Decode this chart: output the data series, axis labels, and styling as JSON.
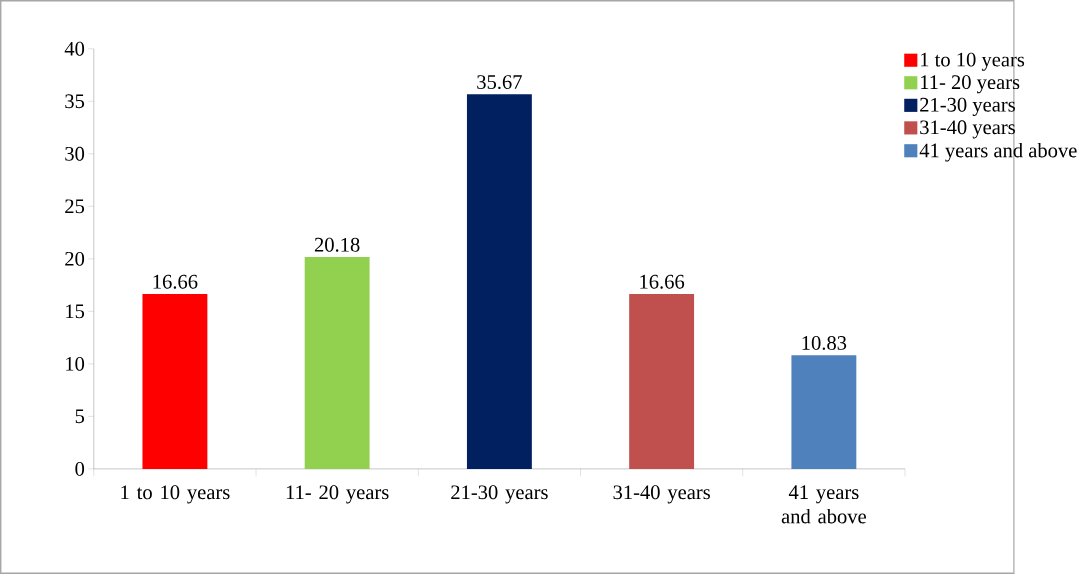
{
  "chart_data": {
    "type": "bar",
    "categories": [
      "1 to 10 years",
      "11- 20 years",
      "21-30 years",
      "31-40 years",
      "41 years and above"
    ],
    "series": [
      {
        "name": "1 to 10 years",
        "color": "#ff0000",
        "values": [
          16.66,
          null,
          null,
          null,
          null
        ]
      },
      {
        "name": "11- 20 years",
        "color": "#92d050",
        "values": [
          null,
          20.18,
          null,
          null,
          null
        ]
      },
      {
        "name": "21-30 years",
        "color": "#002060",
        "values": [
          null,
          null,
          35.67,
          null,
          null
        ]
      },
      {
        "name": "31-40 years",
        "color": "#c0504d",
        "values": [
          null,
          null,
          null,
          16.66,
          null
        ]
      },
      {
        "name": "41 years and above",
        "color": "#4f81bd",
        "values": [
          null,
          null,
          null,
          null,
          10.83
        ]
      }
    ],
    "ylim": [
      0,
      40
    ],
    "yticks": [
      0,
      5,
      10,
      15,
      20,
      25,
      30,
      35,
      40
    ],
    "data_labels": true,
    "legend": "top right",
    "grid": false
  }
}
